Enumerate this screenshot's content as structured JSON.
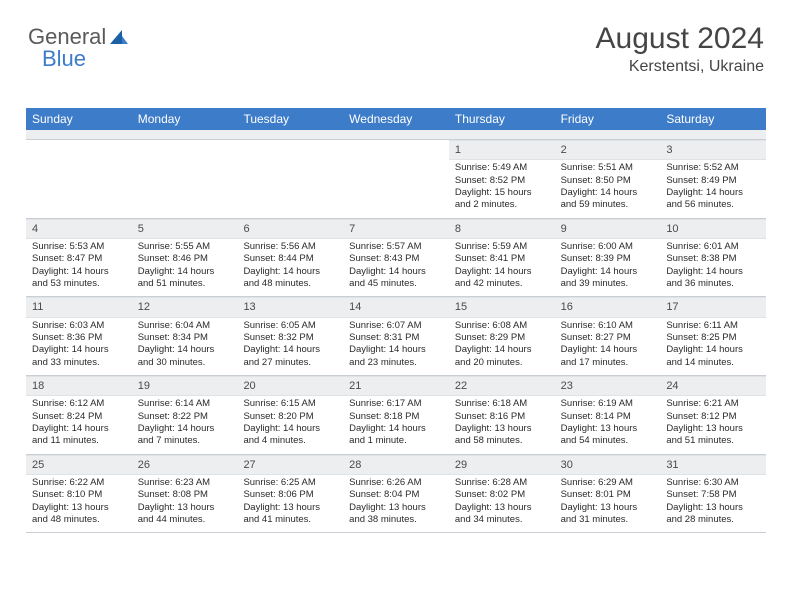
{
  "logo": {
    "text1": "General",
    "text2": "Blue"
  },
  "title": "August 2024",
  "subtitle": "Kerstentsi, Ukraine",
  "day_headers": [
    "Sunday",
    "Monday",
    "Tuesday",
    "Wednesday",
    "Thursday",
    "Friday",
    "Saturday"
  ],
  "colors": {
    "header_bg": "#3d7cc9",
    "header_text": "#ffffff",
    "daynum_bg": "#eceef0",
    "text": "#2a2a2a"
  },
  "weeks": [
    [
      {
        "n": "",
        "sr": "",
        "ss": "",
        "dl": ""
      },
      {
        "n": "",
        "sr": "",
        "ss": "",
        "dl": ""
      },
      {
        "n": "",
        "sr": "",
        "ss": "",
        "dl": ""
      },
      {
        "n": "",
        "sr": "",
        "ss": "",
        "dl": ""
      },
      {
        "n": "1",
        "sr": "Sunrise: 5:49 AM",
        "ss": "Sunset: 8:52 PM",
        "dl": "Daylight: 15 hours and 2 minutes."
      },
      {
        "n": "2",
        "sr": "Sunrise: 5:51 AM",
        "ss": "Sunset: 8:50 PM",
        "dl": "Daylight: 14 hours and 59 minutes."
      },
      {
        "n": "3",
        "sr": "Sunrise: 5:52 AM",
        "ss": "Sunset: 8:49 PM",
        "dl": "Daylight: 14 hours and 56 minutes."
      }
    ],
    [
      {
        "n": "4",
        "sr": "Sunrise: 5:53 AM",
        "ss": "Sunset: 8:47 PM",
        "dl": "Daylight: 14 hours and 53 minutes."
      },
      {
        "n": "5",
        "sr": "Sunrise: 5:55 AM",
        "ss": "Sunset: 8:46 PM",
        "dl": "Daylight: 14 hours and 51 minutes."
      },
      {
        "n": "6",
        "sr": "Sunrise: 5:56 AM",
        "ss": "Sunset: 8:44 PM",
        "dl": "Daylight: 14 hours and 48 minutes."
      },
      {
        "n": "7",
        "sr": "Sunrise: 5:57 AM",
        "ss": "Sunset: 8:43 PM",
        "dl": "Daylight: 14 hours and 45 minutes."
      },
      {
        "n": "8",
        "sr": "Sunrise: 5:59 AM",
        "ss": "Sunset: 8:41 PM",
        "dl": "Daylight: 14 hours and 42 minutes."
      },
      {
        "n": "9",
        "sr": "Sunrise: 6:00 AM",
        "ss": "Sunset: 8:39 PM",
        "dl": "Daylight: 14 hours and 39 minutes."
      },
      {
        "n": "10",
        "sr": "Sunrise: 6:01 AM",
        "ss": "Sunset: 8:38 PM",
        "dl": "Daylight: 14 hours and 36 minutes."
      }
    ],
    [
      {
        "n": "11",
        "sr": "Sunrise: 6:03 AM",
        "ss": "Sunset: 8:36 PM",
        "dl": "Daylight: 14 hours and 33 minutes."
      },
      {
        "n": "12",
        "sr": "Sunrise: 6:04 AM",
        "ss": "Sunset: 8:34 PM",
        "dl": "Daylight: 14 hours and 30 minutes."
      },
      {
        "n": "13",
        "sr": "Sunrise: 6:05 AM",
        "ss": "Sunset: 8:32 PM",
        "dl": "Daylight: 14 hours and 27 minutes."
      },
      {
        "n": "14",
        "sr": "Sunrise: 6:07 AM",
        "ss": "Sunset: 8:31 PM",
        "dl": "Daylight: 14 hours and 23 minutes."
      },
      {
        "n": "15",
        "sr": "Sunrise: 6:08 AM",
        "ss": "Sunset: 8:29 PM",
        "dl": "Daylight: 14 hours and 20 minutes."
      },
      {
        "n": "16",
        "sr": "Sunrise: 6:10 AM",
        "ss": "Sunset: 8:27 PM",
        "dl": "Daylight: 14 hours and 17 minutes."
      },
      {
        "n": "17",
        "sr": "Sunrise: 6:11 AM",
        "ss": "Sunset: 8:25 PM",
        "dl": "Daylight: 14 hours and 14 minutes."
      }
    ],
    [
      {
        "n": "18",
        "sr": "Sunrise: 6:12 AM",
        "ss": "Sunset: 8:24 PM",
        "dl": "Daylight: 14 hours and 11 minutes."
      },
      {
        "n": "19",
        "sr": "Sunrise: 6:14 AM",
        "ss": "Sunset: 8:22 PM",
        "dl": "Daylight: 14 hours and 7 minutes."
      },
      {
        "n": "20",
        "sr": "Sunrise: 6:15 AM",
        "ss": "Sunset: 8:20 PM",
        "dl": "Daylight: 14 hours and 4 minutes."
      },
      {
        "n": "21",
        "sr": "Sunrise: 6:17 AM",
        "ss": "Sunset: 8:18 PM",
        "dl": "Daylight: 14 hours and 1 minute."
      },
      {
        "n": "22",
        "sr": "Sunrise: 6:18 AM",
        "ss": "Sunset: 8:16 PM",
        "dl": "Daylight: 13 hours and 58 minutes."
      },
      {
        "n": "23",
        "sr": "Sunrise: 6:19 AM",
        "ss": "Sunset: 8:14 PM",
        "dl": "Daylight: 13 hours and 54 minutes."
      },
      {
        "n": "24",
        "sr": "Sunrise: 6:21 AM",
        "ss": "Sunset: 8:12 PM",
        "dl": "Daylight: 13 hours and 51 minutes."
      }
    ],
    [
      {
        "n": "25",
        "sr": "Sunrise: 6:22 AM",
        "ss": "Sunset: 8:10 PM",
        "dl": "Daylight: 13 hours and 48 minutes."
      },
      {
        "n": "26",
        "sr": "Sunrise: 6:23 AM",
        "ss": "Sunset: 8:08 PM",
        "dl": "Daylight: 13 hours and 44 minutes."
      },
      {
        "n": "27",
        "sr": "Sunrise: 6:25 AM",
        "ss": "Sunset: 8:06 PM",
        "dl": "Daylight: 13 hours and 41 minutes."
      },
      {
        "n": "28",
        "sr": "Sunrise: 6:26 AM",
        "ss": "Sunset: 8:04 PM",
        "dl": "Daylight: 13 hours and 38 minutes."
      },
      {
        "n": "29",
        "sr": "Sunrise: 6:28 AM",
        "ss": "Sunset: 8:02 PM",
        "dl": "Daylight: 13 hours and 34 minutes."
      },
      {
        "n": "30",
        "sr": "Sunrise: 6:29 AM",
        "ss": "Sunset: 8:01 PM",
        "dl": "Daylight: 13 hours and 31 minutes."
      },
      {
        "n": "31",
        "sr": "Sunrise: 6:30 AM",
        "ss": "Sunset: 7:58 PM",
        "dl": "Daylight: 13 hours and 28 minutes."
      }
    ]
  ]
}
